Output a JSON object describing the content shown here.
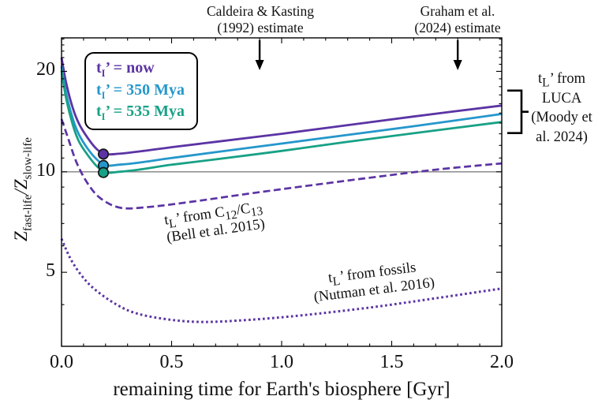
{
  "colors": {
    "purple": "#5b34a4",
    "cyan": "#2597cb",
    "green": "#18a186",
    "axis": "#000000",
    "reference_line": "#808080",
    "text": "#111111"
  },
  "axes": {
    "x": {
      "label": "remaining time for Earth's biosphere [Gyr]",
      "tick_labels": [
        "0.0",
        "0.5",
        "1.0",
        "1.5",
        "2.0"
      ]
    },
    "y": {
      "z": "Z",
      "sub1": "fast-life",
      "slash": "/",
      "sub2": "slow-life",
      "tick_labels": [
        "20",
        "10",
        "5"
      ]
    }
  },
  "legend": {
    "items": [
      {
        "base": "t",
        "sub": "I",
        "rel": "’ = ",
        "value": "now",
        "color": "#5b34a4"
      },
      {
        "base": "t",
        "sub": "I",
        "rel": "’ = ",
        "value": "350 Mya",
        "color": "#2597cb"
      },
      {
        "base": "t",
        "sub": "I",
        "rel": "’ = ",
        "value": "535 Mya",
        "color": "#18a186"
      }
    ]
  },
  "annotations": {
    "caldeira": {
      "line1": "Caldeira & Kasting",
      "line2": "(1992) estimate",
      "x_gyr": 0.9
    },
    "graham": {
      "line1": "Graham et al.",
      "line2": "(2024) estimate",
      "x_gyr": 1.8
    },
    "luca": {
      "base": "t",
      "sub": "L",
      "line1_rest": "’ from",
      "line2": "LUCA",
      "line3": "(Moody et",
      "line4": "al. 2024)"
    }
  },
  "curve_labels": {
    "bell": {
      "base": "t",
      "sub": "L",
      "mid1": "’ from C",
      "sub12": "12",
      "mid2": "/C",
      "sub13": "13",
      "line2": "(Bell et al. 2015)"
    },
    "nutman": {
      "base": "t",
      "sub": "L",
      "mid1": "’ from fossils",
      "line2": "(Nutman et al. 2016)"
    }
  },
  "chart_data": {
    "type": "line",
    "title": "",
    "xlabel": "remaining time for Earth's biosphere [Gyr]",
    "ylabel": "Z_fast-life / Z_slow-life",
    "yscale": "log",
    "xlim": [
      0,
      2
    ],
    "ylim": [
      3.0,
      25.2
    ],
    "xticks": [
      0,
      0.5,
      1.0,
      1.5,
      2.0
    ],
    "xminor_step": 0.1,
    "yticks": [
      20,
      10,
      5
    ],
    "yminorticks": [
      3,
      4,
      6,
      7,
      8,
      9,
      11,
      12,
      13,
      14,
      15,
      16,
      17,
      18,
      19,
      21,
      22,
      23,
      24,
      25
    ],
    "reference_line_y": 10,
    "grid": false,
    "legend_position": "upper-left",
    "series": [
      {
        "id": "now",
        "name": "tI' = now",
        "style": "solid",
        "color": "#5b34a4",
        "width": 2.8,
        "x": [
          0,
          0.02,
          0.05,
          0.08,
          0.12,
          0.16,
          0.2,
          0.26,
          0.35,
          0.5,
          0.7,
          1.0,
          1.3,
          1.6,
          2.0
        ],
        "y": [
          22.0,
          18.6,
          15.6,
          13.9,
          12.6,
          11.7,
          11.3,
          11.33,
          11.5,
          11.85,
          12.3,
          13.0,
          13.8,
          14.65,
          15.8
        ]
      },
      {
        "id": "350mya",
        "name": "tI' = 350 Mya",
        "style": "solid",
        "color": "#2597cb",
        "width": 2.8,
        "x": [
          0,
          0.02,
          0.05,
          0.08,
          0.12,
          0.16,
          0.2,
          0.26,
          0.35,
          0.5,
          0.7,
          1.0,
          1.3,
          1.6,
          2.0
        ],
        "y": [
          20.7,
          17.3,
          14.5,
          12.9,
          11.7,
          10.9,
          10.45,
          10.5,
          10.65,
          11.0,
          11.45,
          12.15,
          12.9,
          13.7,
          14.9
        ]
      },
      {
        "id": "535mya",
        "name": "tI' = 535 Mya",
        "style": "solid",
        "color": "#18a186",
        "width": 2.8,
        "x": [
          0,
          0.02,
          0.05,
          0.08,
          0.12,
          0.16,
          0.2,
          0.26,
          0.35,
          0.5,
          0.7,
          1.0,
          1.3,
          1.6,
          2.0
        ],
        "y": [
          20.1,
          16.7,
          13.9,
          12.3,
          11.2,
          10.4,
          9.95,
          10.0,
          10.15,
          10.5,
          10.9,
          11.55,
          12.3,
          13.05,
          14.1
        ]
      },
      {
        "id": "bell",
        "name": "tL' from C12/C13 (Bell et al. 2015)",
        "style": "dashed",
        "color": "#5b34a4",
        "width": 2.7,
        "dash": "9 4.5",
        "x": [
          0,
          0.03,
          0.07,
          0.12,
          0.18,
          0.27,
          0.4,
          0.6,
          0.85,
          1.1,
          1.4,
          1.7,
          2.0
        ],
        "y": [
          14.4,
          12.6,
          10.6,
          9.2,
          8.3,
          7.8,
          7.85,
          8.15,
          8.6,
          9.05,
          9.6,
          10.15,
          10.6
        ]
      },
      {
        "id": "nutman",
        "name": "tL' from fossils (Nutman et al. 2016)",
        "style": "dotted",
        "color": "#5b34a4",
        "width": 3.0,
        "dash": "2.7 3.3",
        "x": [
          0,
          0.04,
          0.09,
          0.15,
          0.25,
          0.35,
          0.5,
          0.65,
          0.85,
          1.1,
          1.4,
          1.7,
          2.0
        ],
        "y": [
          6.3,
          5.5,
          4.9,
          4.45,
          4.0,
          3.75,
          3.6,
          3.55,
          3.6,
          3.72,
          3.92,
          4.18,
          4.47
        ]
      }
    ],
    "markers": [
      {
        "series": "now",
        "x": 0.19,
        "y": 11.3,
        "color": "#5b34a4"
      },
      {
        "series": "350mya",
        "x": 0.19,
        "y": 10.45,
        "color": "#2597cb"
      },
      {
        "series": "535mya",
        "x": 0.19,
        "y": 9.95,
        "color": "#18a186"
      }
    ]
  }
}
